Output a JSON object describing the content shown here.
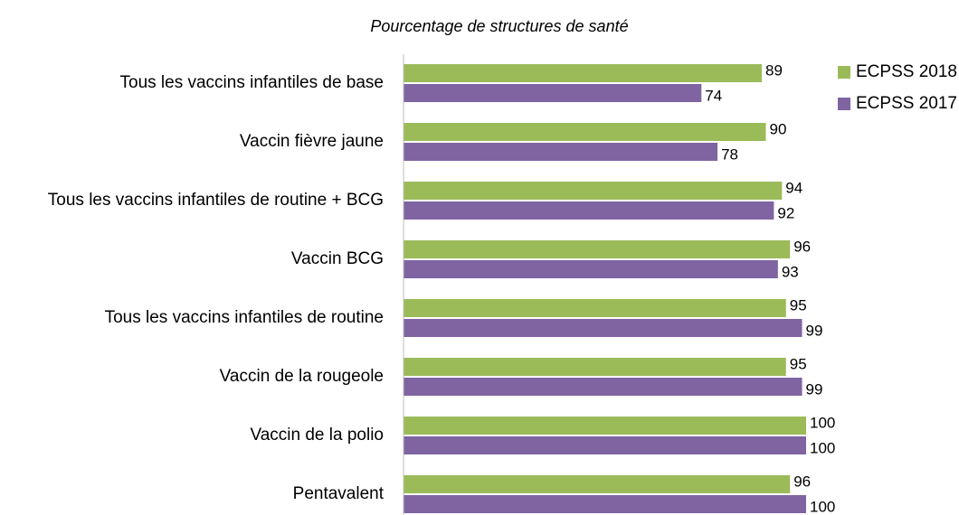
{
  "chart_data": {
    "type": "bar",
    "orientation": "horizontal",
    "title": "Pourcentage de structures de santé",
    "categories": [
      "Tous les vaccins infantiles de base",
      "Vaccin fièvre jaune",
      "Tous les vaccins infantiles de routine + BCG",
      "Vaccin BCG",
      "Tous les vaccins infantiles de routine",
      "Vaccin de la rougeole",
      "Vaccin de la polio",
      "Pentavalent"
    ],
    "series": [
      {
        "name": "ECPSS 2018",
        "color": "#9bbb59",
        "values": [
          89,
          90,
          94,
          96,
          95,
          95,
          100,
          96
        ]
      },
      {
        "name": "ECPSS 2017",
        "color": "#8064a2",
        "values": [
          74,
          78,
          92,
          93,
          99,
          99,
          100,
          100
        ]
      }
    ],
    "xlim": [
      0,
      100
    ],
    "legend": "top-right"
  }
}
